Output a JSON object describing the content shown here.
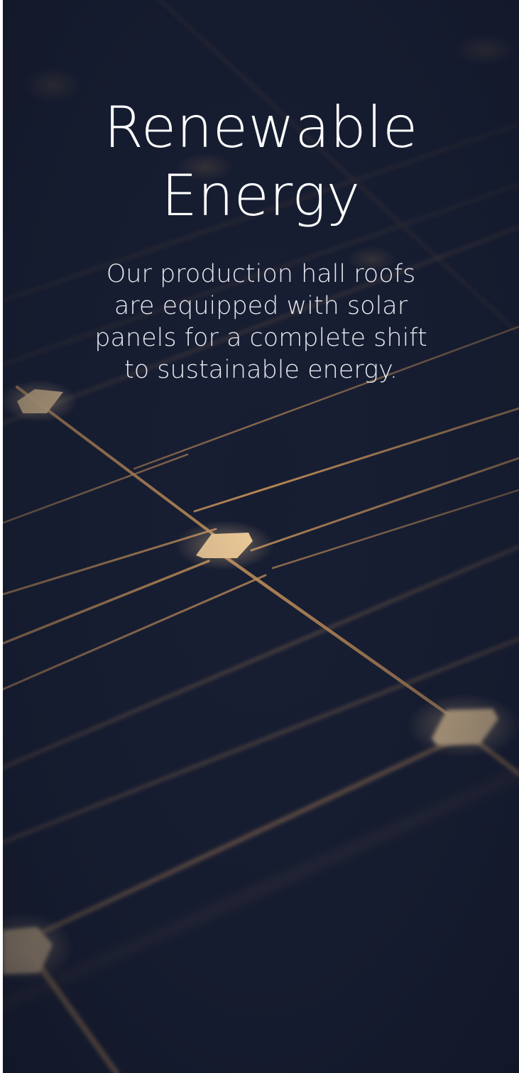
{
  "hero": {
    "title_lines": [
      "Renewable",
      "Energy"
    ],
    "description_lines": [
      "Our production hall roofs",
      "are equipped with solar",
      "panels for a complete shift",
      "to sustainable energy."
    ],
    "background": {
      "image_subject": "solar-panel-closeup",
      "base_color": "#171d31",
      "line_color": "#c8935a",
      "highlight_color": "#f3cf9a"
    }
  }
}
